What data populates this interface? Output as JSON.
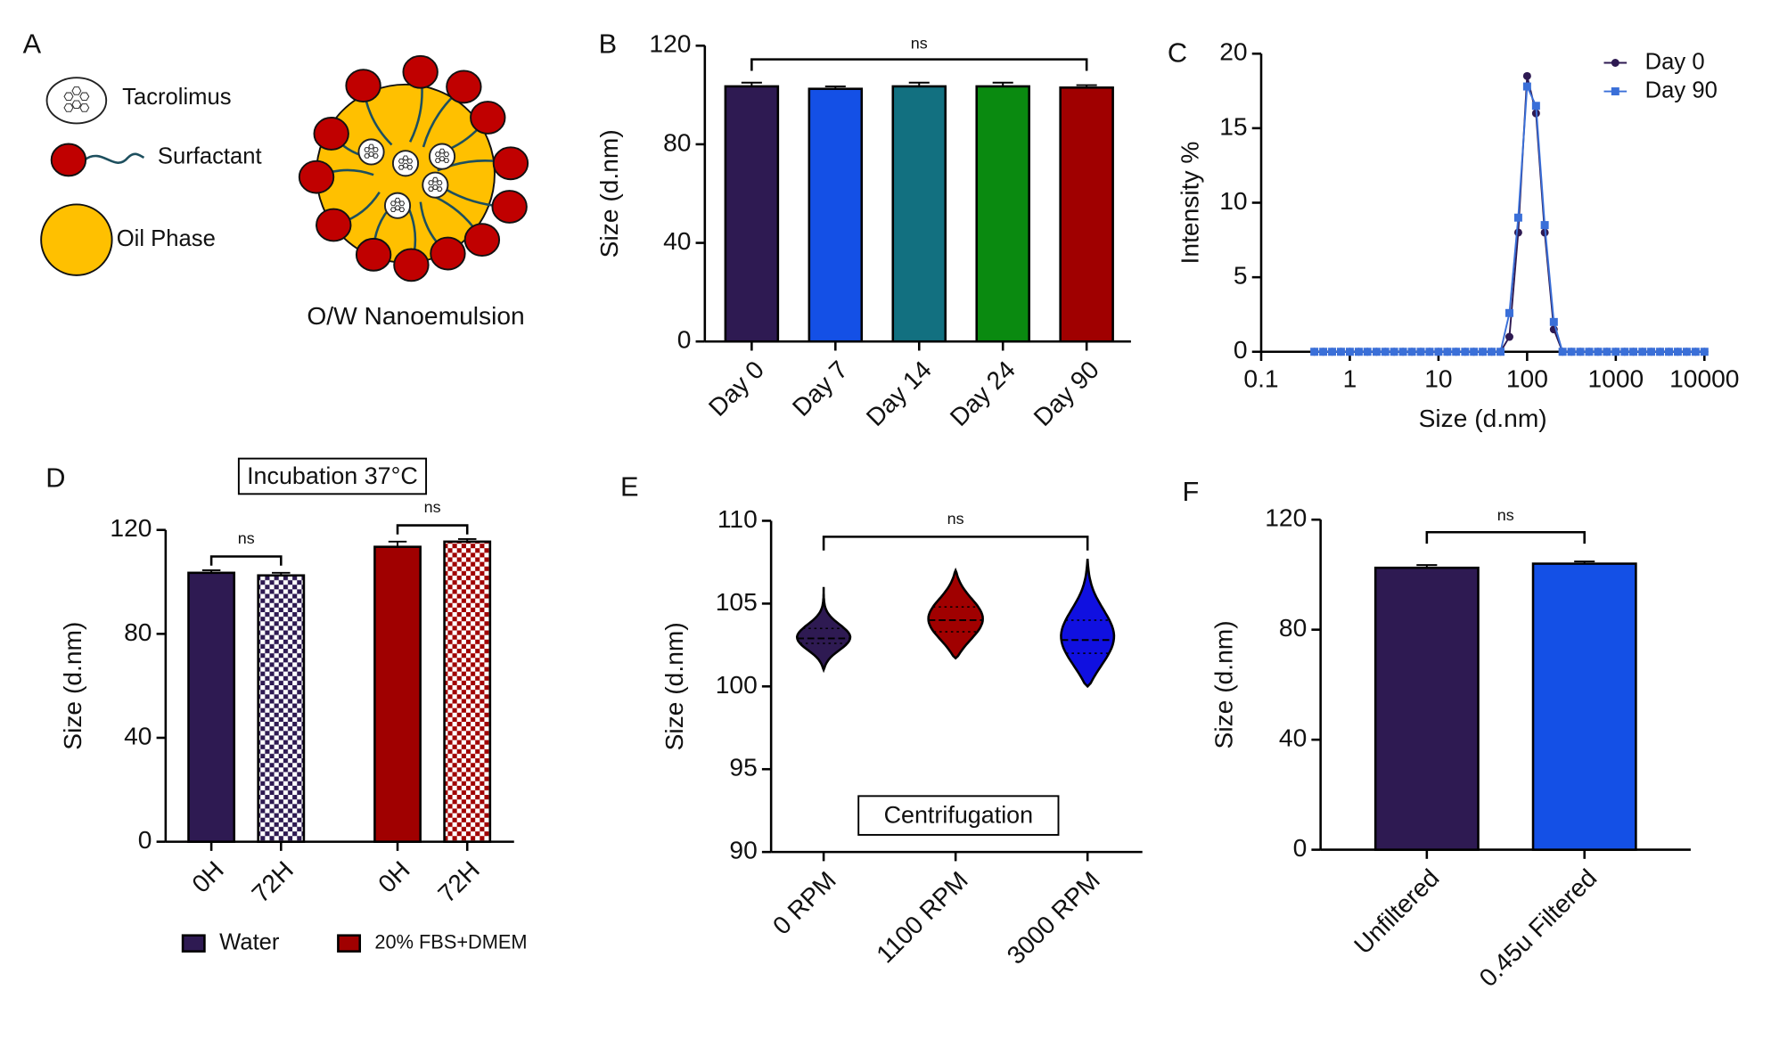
{
  "diagram": {
    "panel_label": "A",
    "labels": [
      "Tacrolimus",
      "Surfactant",
      "Oil Phase",
      "O/W Nanoemulsion"
    ]
  },
  "chart_data": [
    {
      "type": "bar",
      "panel_label": "B",
      "categories": [
        "Day 0",
        "Day 7",
        "Day 14",
        "Day 24",
        "Day 90"
      ],
      "values": [
        103.5,
        102.5,
        103.5,
        103.5,
        103
      ],
      "errors": [
        1.5,
        1,
        1.5,
        1.5,
        1
      ],
      "colors": [
        "#2e1a52",
        "#1450e6",
        "#127080",
        "#0a8a10",
        "#a00000"
      ],
      "ylabel": "Size (d.nm)",
      "ylim": [
        0,
        120
      ],
      "yticks": [
        0,
        40,
        80,
        120
      ],
      "annotations": [
        "ns"
      ]
    },
    {
      "type": "line",
      "panel_label": "C",
      "xscale": "log",
      "xlim": [
        0.1,
        10000
      ],
      "xticks": [
        0.1,
        1,
        10,
        100,
        1000,
        10000
      ],
      "ylim": [
        0,
        20
      ],
      "yticks": [
        0,
        5,
        10,
        15,
        20
      ],
      "xlabel": "Size (d.nm)",
      "ylabel": "Intensity %",
      "legend": "top-right",
      "x": [
        0.398,
        0.501,
        0.631,
        0.794,
        1,
        1.26,
        1.58,
        2,
        2.51,
        3.16,
        3.98,
        5.01,
        6.31,
        7.94,
        10,
        12.6,
        15.8,
        20,
        25.1,
        31.6,
        39.8,
        50.1,
        63.1,
        79.4,
        100,
        126,
        158,
        200,
        251,
        316,
        398,
        501,
        631,
        794,
        1000,
        1260,
        1580,
        2000,
        2510,
        3160,
        3980,
        5010,
        6310,
        7940,
        10000
      ],
      "series": [
        {
          "name": "Day 0",
          "color": "#2e1a52",
          "marker": "circle",
          "values": [
            0,
            0,
            0,
            0,
            0,
            0,
            0,
            0,
            0,
            0,
            0,
            0,
            0,
            0,
            0,
            0,
            0,
            0,
            0,
            0,
            0,
            0,
            1,
            8,
            18.5,
            16,
            8,
            1.5,
            0,
            0,
            0,
            0,
            0,
            0,
            0,
            0,
            0,
            0,
            0,
            0,
            0,
            0,
            0,
            0,
            0
          ]
        },
        {
          "name": "Day 90",
          "color": "#3a6fd8",
          "marker": "square",
          "values": [
            0,
            0,
            0,
            0,
            0,
            0,
            0,
            0,
            0,
            0,
            0,
            0,
            0,
            0,
            0,
            0,
            0,
            0,
            0,
            0,
            0,
            0,
            2.6,
            9,
            17.8,
            16.5,
            8.5,
            2,
            0,
            0,
            0,
            0,
            0,
            0,
            0,
            0,
            0,
            0,
            0,
            0,
            0,
            0,
            0,
            0,
            0
          ]
        }
      ]
    },
    {
      "type": "grouped_bar",
      "panel_label": "D",
      "inset_label": "Incubation 37°C",
      "categories": [
        "0H",
        "72H"
      ],
      "category_fills": [
        "solid",
        "checker"
      ],
      "series": [
        {
          "name": "Water",
          "color": "#2e1a52",
          "values": [
            103.5,
            102.5
          ],
          "errors": [
            1,
            1
          ]
        },
        {
          "name": "20% FBS+DMEM",
          "color": "#a00000",
          "values": [
            113.5,
            115.5
          ],
          "errors": [
            2,
            1
          ]
        }
      ],
      "ylabel": "Size (d.nm)",
      "ylim": [
        0,
        120
      ],
      "yticks": [
        0,
        40,
        80,
        120
      ],
      "legend": "bottom",
      "annotations": [
        "ns",
        "ns"
      ]
    },
    {
      "type": "violin",
      "panel_label": "E",
      "inset_label": "Centrifugation",
      "categories": [
        "0 RPM",
        "1100 RPM",
        "3000 RPM"
      ],
      "min": [
        101,
        101.7,
        100
      ],
      "q1": [
        102.6,
        103.3,
        102
      ],
      "median": [
        102.9,
        104,
        102.8
      ],
      "q3": [
        103.5,
        104.8,
        104
      ],
      "max": [
        106,
        107,
        107.7
      ],
      "colors": [
        "#2e1a52",
        "#a00000",
        "#1010e0"
      ],
      "ylabel": "Size (d.nm)",
      "ylim": [
        90,
        110
      ],
      "yticks": [
        90,
        95,
        100,
        105,
        110
      ],
      "annotations": [
        "ns"
      ]
    },
    {
      "type": "bar",
      "panel_label": "F",
      "categories": [
        "Unfiltered",
        "0.45u Filtered"
      ],
      "values": [
        102.5,
        104
      ],
      "errors": [
        1,
        0.8
      ],
      "colors": [
        "#2e1a52",
        "#1450e6"
      ],
      "ylabel": "Size (d.nm)",
      "ylim": [
        0,
        120
      ],
      "yticks": [
        0,
        40,
        80,
        120
      ],
      "annotations": [
        "ns"
      ]
    }
  ]
}
